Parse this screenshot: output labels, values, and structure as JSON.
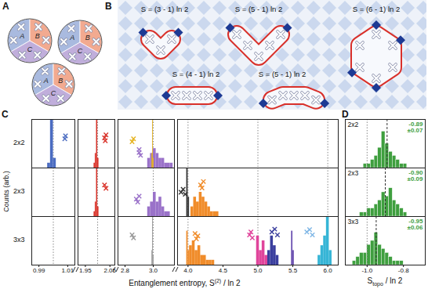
{
  "diagram_a": {
    "label": "A",
    "regions": [
      "A",
      "B",
      "C"
    ]
  },
  "diagram_b": {
    "label": "B",
    "loops": [
      "S = (3 - 1) ln 2",
      "S = (5 - 1) ln 2",
      "S = (6 - 1) ln 2",
      "S = (4 - 1) ln 2",
      "S = (5 - 1) ln 2"
    ]
  },
  "chart_data": [
    {
      "type": "histogram",
      "panel": "C",
      "xlabel": {
        "main": "Entanglement entropy, S",
        "sup": "(2)",
        "after": " / ln 2"
      },
      "ylabel": "Counts (arb.)",
      "tick_labels": "x",
      "ylim": [
        0,
        10
      ],
      "x_segments": [
        {
          "xlim": [
            0.985,
            1.015
          ],
          "xticks": [
            0.99,
            1.01
          ]
        },
        {
          "xlim": [
            1.92,
            2.07
          ],
          "xticks": [
            1.95,
            2.05
          ]
        },
        {
          "xlim": [
            2.75,
            3.15
          ],
          "xticks": [
            2.8,
            {
              "value": 3.0,
              "label": "3.0"
            }
          ]
        },
        {
          "xlim": [
            3.85,
            6.15
          ],
          "xticks": [
            {
              "value": 4.0,
              "label": "4.0"
            },
            4.5,
            {
              "value": 5.0,
              "label": "5.0"
            },
            5.5,
            {
              "value": 6.0,
              "label": "6.0"
            }
          ]
        }
      ],
      "reference_lines": [
        1.0,
        2.0,
        3.0,
        4.0,
        5.0,
        6.0
      ],
      "rows": [
        {
          "label": "2x2",
          "series": [
            {
              "type": "histogram",
              "color": "#4b6cc1",
              "bins": [
                0.996,
                0.998,
                1.0,
                1.002
              ],
              "counts": [
                1,
                10,
                2
              ]
            },
            {
              "type": "scatter",
              "marker": "cross",
              "color": "#4b6cc1",
              "x": [
                1.008,
                1.0085
              ],
              "y": [
                6.0,
                6.6
              ]
            },
            {
              "type": "histogram",
              "color": "#d9342b",
              "bins": [
                1.985,
                1.99,
                1.995,
                2.0,
                2.005
              ],
              "counts": [
                1,
                3,
                10,
                2
              ]
            },
            {
              "type": "scatter",
              "marker": "cross",
              "color": "#d9342b",
              "x": [
                2.028,
                2.034,
                2.031
              ],
              "y": [
                6.2,
                6.8,
                5.6
              ]
            },
            {
              "type": "scatter",
              "marker": "cross",
              "color": "#e6b422",
              "x": [
                2.85,
                2.86
              ],
              "y": [
                5.4,
                6.0
              ]
            },
            {
              "type": "scatter",
              "marker": "cross",
              "color": "#9a72c9",
              "x": [
                2.9,
                2.91,
                2.9
              ],
              "y": [
                3.2,
                2.6,
                3.8
              ]
            },
            {
              "type": "histogram",
              "color": "#9a72c9",
              "bins": [
                2.96,
                2.98,
                3.0,
                3.02,
                3.04,
                3.06,
                3.08,
                3.1,
                3.12,
                3.14
              ],
              "counts": [
                2,
                3,
                4,
                3,
                2,
                2,
                1,
                1,
                1
              ]
            },
            {
              "type": "histogram",
              "color": "#e6b422",
              "bins": [
                2.99,
                2.995,
                3.0,
                3.005
              ],
              "counts": [
                3,
                10,
                2
              ]
            }
          ]
        },
        {
          "label": "2x3",
          "series": [
            {
              "type": "histogram",
              "color": "#d9342b",
              "bins": [
                1.985,
                1.99,
                1.995,
                2.0,
                2.005
              ],
              "counts": [
                1,
                3,
                10,
                2
              ]
            },
            {
              "type": "scatter",
              "marker": "cross",
              "color": "#d9342b",
              "x": [
                2.028,
                2.034
              ],
              "y": [
                6.5,
                5.8
              ]
            },
            {
              "type": "scatter",
              "marker": "cross",
              "color": "#9a72c9",
              "x": [
                2.88,
                2.9,
                2.89
              ],
              "y": [
                3.6,
                4.2,
                3.0
              ]
            },
            {
              "type": "histogram",
              "color": "#9a72c9",
              "bins": [
                2.96,
                2.98,
                3.0,
                3.02,
                3.04,
                3.06,
                3.08,
                3.1,
                3.12
              ],
              "counts": [
                2,
                3,
                5,
                3,
                4,
                2,
                1,
                1
              ]
            },
            {
              "type": "scatter",
              "marker": "cross",
              "color": "#333333",
              "x": [
                3.9,
                3.93,
                3.96
              ],
              "y": [
                5.0,
                5.6,
                4.6
              ]
            },
            {
              "type": "histogram",
              "color": "#333333",
              "bins": [
                3.98,
                4.0,
                4.02
              ],
              "counts": [
                10,
                4
              ]
            },
            {
              "type": "histogram",
              "color": "#f08c2a",
              "bins": [
                4.04,
                4.08,
                4.12,
                4.16,
                4.2,
                4.24,
                4.28,
                4.32,
                4.36,
                4.4,
                4.44
              ],
              "counts": [
                2,
                4,
                3,
                5,
                4,
                3,
                2,
                1,
                1,
                1
              ]
            },
            {
              "type": "scatter",
              "marker": "cross",
              "color": "#f08c2a",
              "x": [
                4.18,
                4.22,
                4.2
              ],
              "y": [
                6.5,
                7.2,
                5.9
              ]
            }
          ]
        },
        {
          "label": "3x3",
          "series": [
            {
              "type": "histogram",
              "color": "#9a9a9a",
              "bins": [
                2.99,
                2.995,
                3.0,
                3.005
              ],
              "counts": [
                3,
                10,
                2
              ]
            },
            {
              "type": "scatter",
              "marker": "cross",
              "color": "#9a9a9a",
              "x": [
                2.85,
                2.86
              ],
              "y": [
                6.2,
                5.6
              ]
            },
            {
              "type": "histogram",
              "color": "#f08c2a",
              "bins": [
                3.98,
                4.0,
                4.02,
                4.06,
                4.1,
                4.14,
                4.18,
                4.22,
                4.26,
                4.3,
                4.34,
                4.38
              ],
              "counts": [
                7,
                3,
                4,
                5,
                3,
                4,
                2,
                2,
                1,
                1,
                1
              ]
            },
            {
              "type": "scatter",
              "marker": "cross",
              "color": "#f08c2a",
              "x": [
                4.1,
                4.14,
                4.12
              ],
              "y": [
                6.5,
                6.0,
                5.4
              ]
            },
            {
              "type": "scatter",
              "marker": "cross",
              "color": "#e0449b",
              "x": [
                4.88,
                4.92,
                4.9
              ],
              "y": [
                6.2,
                5.6,
                6.8
              ]
            },
            {
              "type": "histogram",
              "color": "#e0449b",
              "bins": [
                4.98,
                5.02,
                5.06,
                5.1,
                5.14
              ],
              "counts": [
                6,
                3,
                5,
                2
              ]
            },
            {
              "type": "scatter",
              "marker": "cross",
              "color": "#3b3f9e",
              "x": [
                5.2,
                5.24,
                5.28
              ],
              "y": [
                6.8,
                7.4,
                6.2
              ]
            },
            {
              "type": "histogram",
              "color": "#3b3f9e",
              "bins": [
                5.14,
                5.18,
                5.22,
                5.26,
                5.3
              ],
              "counts": [
                3,
                6,
                4,
                2
              ]
            },
            {
              "type": "histogram",
              "color": "#6a4fb0",
              "bins": [
                5.48,
                5.5,
                5.52
              ],
              "counts": [
                7,
                3
              ]
            },
            {
              "type": "scatter",
              "marker": "cross",
              "color": "#7fb7e6",
              "x": [
                5.7,
                5.74,
                5.78
              ],
              "y": [
                6.8,
                7.3,
                6.2
              ]
            },
            {
              "type": "histogram",
              "color": "#36b5d6",
              "bins": [
                5.86,
                5.9,
                5.94,
                5.98,
                6.02,
                6.06
              ],
              "counts": [
                2,
                4,
                6,
                10,
                3
              ]
            }
          ]
        }
      ]
    },
    {
      "type": "histogram",
      "panel": "D",
      "xlabel": {
        "main": "S",
        "sub": "topo",
        "after": " / ln 2"
      },
      "tick_labels": "x",
      "xlim": [
        -1.12,
        -0.68
      ],
      "xticks": [
        {
          "value": -1.0,
          "label": "-1.0"
        },
        -0.8
      ],
      "ylim": [
        0,
        12
      ],
      "reference_lines": [
        -1.0
      ],
      "rows": [
        {
          "label": "2x2",
          "color": "#3f9f3f",
          "mean": -0.89,
          "annotation": [
            "-0.89",
            "±0.07"
          ],
          "bins": [
            -1.02,
            -1.0,
            -0.98,
            -0.96,
            -0.94,
            -0.92,
            -0.9,
            -0.88,
            -0.86,
            -0.84,
            -0.82,
            -0.8,
            -0.78
          ],
          "counts": [
            1,
            1,
            2,
            3,
            5,
            9,
            6,
            4,
            3,
            2,
            1,
            1
          ]
        },
        {
          "label": "2x3",
          "color": "#3f9f3f",
          "mean": -0.9,
          "annotation": [
            "-0.90",
            "±0.09"
          ],
          "bins": [
            -1.04,
            -1.02,
            -1.0,
            -0.98,
            -0.96,
            -0.94,
            -0.92,
            -0.9,
            -0.88,
            -0.86,
            -0.84,
            -0.82,
            -0.8,
            -0.78
          ],
          "counts": [
            1,
            1,
            2,
            2,
            3,
            4,
            6,
            5,
            7,
            4,
            3,
            2,
            1
          ]
        },
        {
          "label": "3x3",
          "color": "#3f9f3f",
          "mean": -0.95,
          "annotation": [
            "-0.95",
            "±0.06"
          ],
          "bins": [
            -1.08,
            -1.06,
            -1.04,
            -1.02,
            -1.0,
            -0.98,
            -0.96,
            -0.94,
            -0.92,
            -0.9,
            -0.88,
            -0.86,
            -0.84,
            -0.82,
            -0.8
          ],
          "counts": [
            1,
            2,
            3,
            3,
            5,
            6,
            8,
            5,
            4,
            3,
            2,
            1,
            1,
            1
          ]
        }
      ]
    }
  ]
}
